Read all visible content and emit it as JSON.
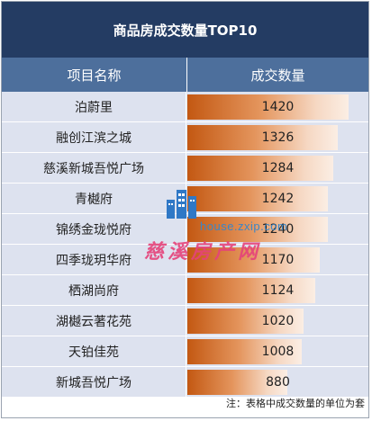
{
  "header": {
    "title": "商品房成交数量TOP10"
  },
  "columns": [
    "项目名称",
    "成交数量"
  ],
  "chart_data": {
    "type": "bar",
    "orientation": "horizontal",
    "title": "商品房成交数量TOP10",
    "categories": [
      "泊蔚里",
      "融创江滨之城",
      "慈溪新城吾悦广场",
      "青樾府",
      "锦绣金珑悦府",
      "四季珑玥华府",
      "栖湖尚府",
      "湖樾云著花苑",
      "天铂佳苑",
      "新城吾悦广场"
    ],
    "values": [
      1420,
      1326,
      1284,
      1242,
      1240,
      1170,
      1124,
      1020,
      1008,
      880
    ],
    "xlim": [
      0,
      1500
    ]
  },
  "watermark": {
    "url": "house.zxip.com",
    "brand": "慈溪房产网"
  },
  "note": "注：表格中成交数量的单位为套",
  "colors": {
    "title_bg": "#243c63",
    "header_bg": "#4d6f9c",
    "row_bg": "#dde2ef",
    "bar": "#c35812"
  }
}
